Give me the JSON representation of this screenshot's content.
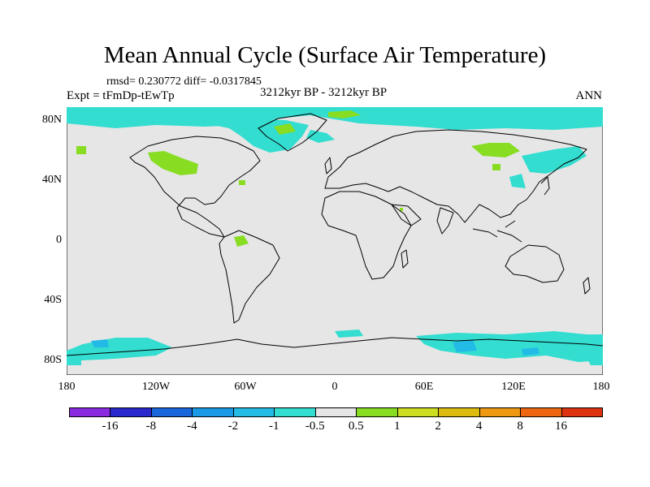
{
  "title": "Mean Annual Cycle (Surface Air Temperature)",
  "stats_text": "rmsd= 0.230772 diff= -0.0317845",
  "experiment_text": "Expt = tFmDp-tEwTp",
  "period_text": "3212kyr BP - 3212kyr BP",
  "season_text": "ANN",
  "latitude_labels": [
    "80N",
    "40N",
    "0",
    "40S",
    "80S"
  ],
  "longitude_labels": [
    "180",
    "120W",
    "60W",
    "0",
    "60E",
    "120E",
    "180"
  ],
  "colors": {
    "background_near_zero": "#e6e6e6",
    "cyan_minus1": "#33ddd0",
    "light_blue_minus2": "#22bbe6",
    "green_plus0_5": "#88dd22"
  },
  "colorbar": {
    "levels": [
      "-16",
      "-8",
      "-4",
      "-2",
      "-1",
      "-0.5",
      "0.5",
      "1",
      "2",
      "4",
      "8",
      "16"
    ],
    "colors": [
      "#8a2be2",
      "#2828cc",
      "#1a66dd",
      "#1a99e6",
      "#22bbe6",
      "#33ddd0",
      "#e6e6e6",
      "#88dd22",
      "#ccdd22",
      "#ddbb11",
      "#ee9911",
      "#ee6611",
      "#dd3311"
    ]
  }
}
